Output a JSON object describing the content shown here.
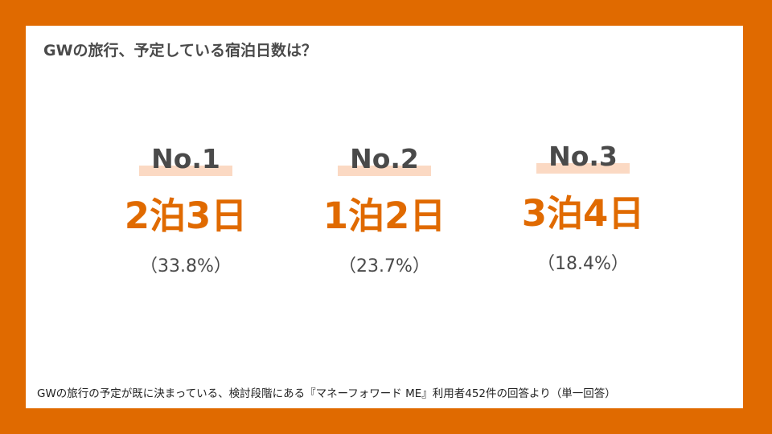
{
  "colors": {
    "background": "#e06a00",
    "accent": "#e06a00",
    "highlight": "#fbd9c3",
    "text": "#4a4a4a"
  },
  "slide": {
    "title": "GWの旅行、予定している宿泊日数は？",
    "rankings": [
      {
        "rank": "No.1",
        "nights": "2泊3日",
        "percent": "（33.8%）"
      },
      {
        "rank": "No.2",
        "nights": "1泊2日",
        "percent": "（23.7%）"
      },
      {
        "rank": "No.3",
        "nights": "3泊4日",
        "percent": "（18.4%）"
      }
    ],
    "footnote": "GWの旅行の予定が既に決まっている、検討段階にある『マネーフォワード ME』利用者452件の回答より（単一回答）"
  }
}
